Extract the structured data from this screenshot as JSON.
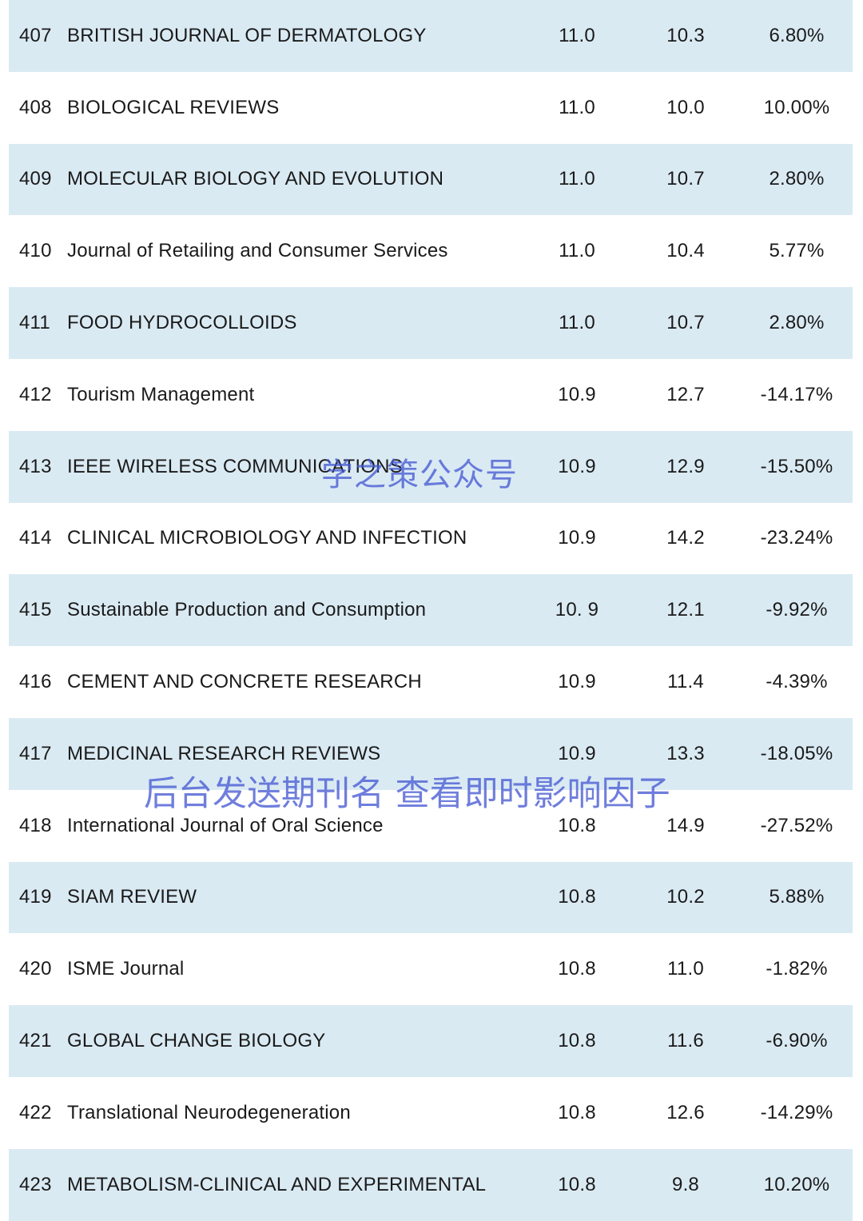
{
  "table": {
    "rows": [
      {
        "rank": "407",
        "journal": "BRITISH JOURNAL OF DERMATOLOGY",
        "if_a": "11.0",
        "if_b": "10.3",
        "change": "6.80%"
      },
      {
        "rank": "408",
        "journal": "BIOLOGICAL REVIEWS",
        "if_a": "11.0",
        "if_b": "10.0",
        "change": "10.00%"
      },
      {
        "rank": "409",
        "journal": "MOLECULAR BIOLOGY AND EVOLUTION",
        "if_a": "11.0",
        "if_b": "10.7",
        "change": "2.80%"
      },
      {
        "rank": "410",
        "journal": "Journal of Retailing and Consumer Services",
        "if_a": "11.0",
        "if_b": "10.4",
        "change": "5.77%"
      },
      {
        "rank": "411",
        "journal": "FOOD HYDROCOLLOIDS",
        "if_a": "11.0",
        "if_b": "10.7",
        "change": "2.80%"
      },
      {
        "rank": "412",
        "journal": "Tourism Management",
        "if_a": "10.9",
        "if_b": "12.7",
        "change": "-14.17%"
      },
      {
        "rank": "413",
        "journal": "IEEE WIRELESS COMMUNICATIONS",
        "if_a": "10.9",
        "if_b": "12.9",
        "change": "-15.50%"
      },
      {
        "rank": "414",
        "journal": "CLINICAL MICROBIOLOGY AND INFECTION",
        "if_a": "10.9",
        "if_b": "14.2",
        "change": "-23.24%"
      },
      {
        "rank": "415",
        "journal": "Sustainable Production and Consumption",
        "if_a": "10. 9",
        "if_b": "12.1",
        "change": "-9.92%"
      },
      {
        "rank": "416",
        "journal": "CEMENT AND CONCRETE RESEARCH",
        "if_a": "10.9",
        "if_b": "11.4",
        "change": "-4.39%"
      },
      {
        "rank": "417",
        "journal": "MEDICINAL RESEARCH REVIEWS",
        "if_a": "10.9",
        "if_b": "13.3",
        "change": "-18.05%"
      },
      {
        "rank": "418",
        "journal": "International Journal of Oral Science",
        "if_a": "10.8",
        "if_b": "14.9",
        "change": "-27.52%"
      },
      {
        "rank": "419",
        "journal": "SIAM REVIEW",
        "if_a": "10.8",
        "if_b": "10.2",
        "change": "5.88%"
      },
      {
        "rank": "420",
        "journal": "ISME Journal",
        "if_a": "10.8",
        "if_b": "11.0",
        "change": "-1.82%"
      },
      {
        "rank": "421",
        "journal": "GLOBAL CHANGE BIOLOGY",
        "if_a": "10.8",
        "if_b": "11.6",
        "change": "-6.90%"
      },
      {
        "rank": "422",
        "journal": "Translational Neurodegeneration",
        "if_a": "10.8",
        "if_b": "12.6",
        "change": "-14.29%"
      },
      {
        "rank": "423",
        "journal": "METABOLISM-CLINICAL AND EXPERIMENTAL",
        "if_a": "10.8",
        "if_b": "9.8",
        "change": "10.20%"
      }
    ]
  },
  "watermarks": {
    "account": "学之策公众号",
    "instruction": "后台发送期刊名 查看即时影响因子"
  },
  "colors": {
    "stripe": "#daeaf3",
    "watermark": "#465ad2"
  }
}
